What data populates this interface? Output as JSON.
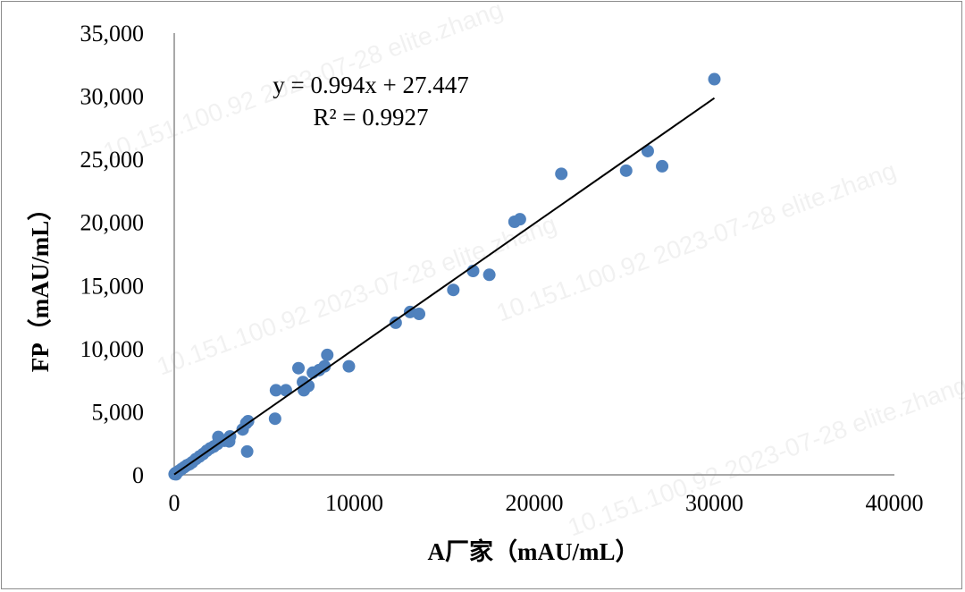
{
  "chart_data": {
    "type": "scatter",
    "title": "",
    "xlabel": "A厂家（mAU/mL）",
    "ylabel": "FP（mAU/mL）",
    "xlim": [
      0,
      40000
    ],
    "ylim": [
      0,
      35000
    ],
    "x_ticks": [
      0,
      10000,
      20000,
      30000,
      40000
    ],
    "x_tick_labels": [
      "0",
      "10000",
      "20000",
      "30000",
      "40000"
    ],
    "y_ticks": [
      0,
      5000,
      10000,
      15000,
      20000,
      25000,
      30000,
      35000
    ],
    "y_tick_labels": [
      "0",
      "5,000",
      "10,000",
      "15,000",
      "20,000",
      "25,000",
      "30,000",
      "35,000"
    ],
    "grid": false,
    "marker_color": "#4f81bd",
    "trendline": {
      "slope": 0.994,
      "intercept": 27.447,
      "x_range": [
        0,
        30000
      ],
      "color": "#000000",
      "equation_label": "y = 0.994x + 27.447",
      "r2_label": "R² = 0.9927"
    },
    "points": [
      {
        "x": 20,
        "y": 60
      },
      {
        "x": 60,
        "y": 130
      },
      {
        "x": 100,
        "y": 40
      },
      {
        "x": 150,
        "y": 200
      },
      {
        "x": 250,
        "y": 300
      },
      {
        "x": 400,
        "y": 450
      },
      {
        "x": 550,
        "y": 600
      },
      {
        "x": 700,
        "y": 750
      },
      {
        "x": 850,
        "y": 850
      },
      {
        "x": 1000,
        "y": 1000
      },
      {
        "x": 1200,
        "y": 1250
      },
      {
        "x": 1400,
        "y": 1450
      },
      {
        "x": 1600,
        "y": 1650
      },
      {
        "x": 1800,
        "y": 1900
      },
      {
        "x": 2000,
        "y": 2100
      },
      {
        "x": 2200,
        "y": 2250
      },
      {
        "x": 2400,
        "y": 2450
      },
      {
        "x": 2450,
        "y": 3000
      },
      {
        "x": 2800,
        "y": 2700
      },
      {
        "x": 3050,
        "y": 2650
      },
      {
        "x": 3100,
        "y": 3050
      },
      {
        "x": 3800,
        "y": 3600
      },
      {
        "x": 4000,
        "y": 4100
      },
      {
        "x": 4100,
        "y": 4250
      },
      {
        "x": 4050,
        "y": 1850
      },
      {
        "x": 5600,
        "y": 4450
      },
      {
        "x": 5650,
        "y": 6700
      },
      {
        "x": 6200,
        "y": 6700
      },
      {
        "x": 6900,
        "y": 8450
      },
      {
        "x": 7150,
        "y": 7350
      },
      {
        "x": 7200,
        "y": 6700
      },
      {
        "x": 7450,
        "y": 7050
      },
      {
        "x": 7700,
        "y": 8100
      },
      {
        "x": 8050,
        "y": 8300
      },
      {
        "x": 8350,
        "y": 8600
      },
      {
        "x": 8500,
        "y": 9500
      },
      {
        "x": 9700,
        "y": 8600
      },
      {
        "x": 12300,
        "y": 12050
      },
      {
        "x": 13100,
        "y": 12900
      },
      {
        "x": 13600,
        "y": 12750
      },
      {
        "x": 15500,
        "y": 14650
      },
      {
        "x": 16600,
        "y": 16150
      },
      {
        "x": 17500,
        "y": 15850
      },
      {
        "x": 18900,
        "y": 20050
      },
      {
        "x": 19200,
        "y": 20250
      },
      {
        "x": 21500,
        "y": 23850
      },
      {
        "x": 25100,
        "y": 24100
      },
      {
        "x": 26300,
        "y": 25650
      },
      {
        "x": 27100,
        "y": 24450
      },
      {
        "x": 30000,
        "y": 31350
      }
    ]
  }
}
